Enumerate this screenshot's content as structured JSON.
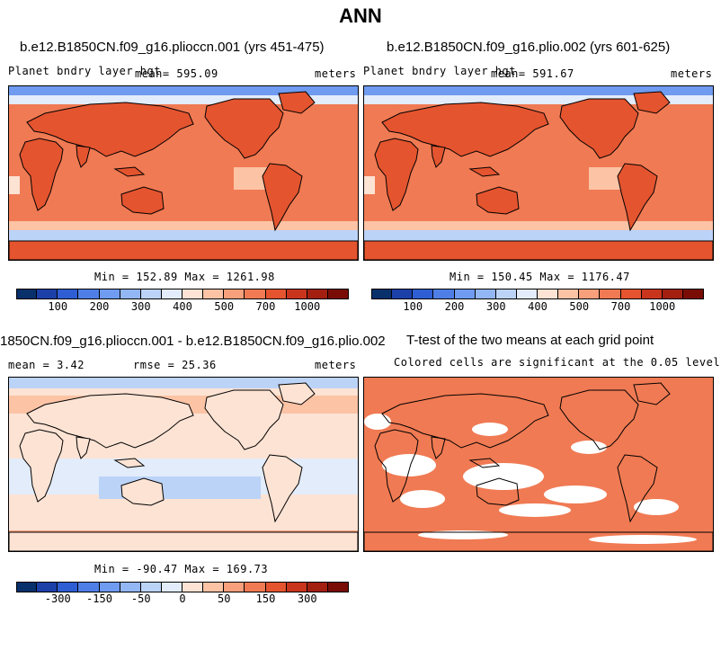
{
  "title": "ANN",
  "panels": [
    {
      "case_title": "b.e12.B1850CN.f09_g16.plioccn.001 (yrs 451-475)",
      "variable": "Planet bndry layer hgt",
      "mean_text": "mean= 595.09",
      "units": "meters",
      "minmax": "Min = 152.89 Max = 1261.98",
      "colorbar_labels": [
        "100",
        "200",
        "300",
        "400",
        "500",
        "700",
        "1000"
      ]
    },
    {
      "case_title": "b.e12.B1850CN.f09_g16.plio.002 (yrs 601-625)",
      "variable": "Planet bndry layer hgt",
      "mean_text": "mean= 591.67",
      "units": "meters",
      "minmax": "Min = 150.45 Max = 1176.47",
      "colorbar_labels": [
        "100",
        "200",
        "300",
        "400",
        "500",
        "700",
        "1000"
      ]
    },
    {
      "case_title": "1850CN.f09_g16.plioccn.001 - b.e12.B1850CN.f09_g16.plio.002",
      "mean_text": "mean =   3.42",
      "rmse_text": "rmse =  25.36",
      "units": "meters",
      "minmax": "Min = -90.47 Max = 169.73",
      "colorbar_labels": [
        "-300",
        "-150",
        "-50",
        "0",
        "50",
        "150",
        "300"
      ]
    },
    {
      "case_title": "T-test of the two means at each grid point",
      "subtitle": "Colored cells are significant at the 0.05 level"
    }
  ],
  "colors": {
    "abs_scale": [
      "#08306b",
      "#1c3fa8",
      "#2f5ed4",
      "#4f7fe6",
      "#6f9bf0",
      "#93b6f5",
      "#bcd3f8",
      "#e2ecfb",
      "#fde3d4",
      "#fcc3a5",
      "#f8a07c",
      "#f07a53",
      "#e4542f",
      "#c9351c",
      "#a31f10",
      "#7a0c06"
    ],
    "diff_scale": [
      "#08306b",
      "#1c3fa8",
      "#2f5ed4",
      "#4f7fe6",
      "#6f9bf0",
      "#93b6f5",
      "#bcd3f8",
      "#e2ecfb",
      "#fde3d4",
      "#fcc3a5",
      "#f8a07c",
      "#f07a53",
      "#e4542f",
      "#c9351c",
      "#a31f10",
      "#7a0c06"
    ],
    "significance": "#f07a53"
  },
  "chart_data": [
    {
      "type": "heatmap",
      "title": "b.e12.B1850CN.f09_g16.plioccn.001 (yrs 451-475)",
      "variable": "Planet bndry layer hgt",
      "units": "meters",
      "mean": 595.09,
      "min": 152.89,
      "max": 1261.98,
      "contour_levels": [
        100,
        200,
        300,
        400,
        500,
        700,
        1000
      ]
    },
    {
      "type": "heatmap",
      "title": "b.e12.B1850CN.f09_g16.plio.002 (yrs 601-625)",
      "variable": "Planet bndry layer hgt",
      "units": "meters",
      "mean": 591.67,
      "min": 150.45,
      "max": 1176.47,
      "contour_levels": [
        100,
        200,
        300,
        400,
        500,
        700,
        1000
      ]
    },
    {
      "type": "heatmap",
      "title": "1850CN.f09_g16.plioccn.001 - b.e12.B1850CN.f09_g16.plio.002",
      "units": "meters",
      "mean": 3.42,
      "rmse": 25.36,
      "min": -90.47,
      "max": 169.73,
      "contour_levels": [
        -300,
        -150,
        -50,
        0,
        50,
        150,
        300
      ]
    },
    {
      "type": "heatmap",
      "title": "T-test of the two means at each grid point",
      "subtitle": "Colored cells are significant at the 0.05 level",
      "significance_level": 0.05
    }
  ]
}
